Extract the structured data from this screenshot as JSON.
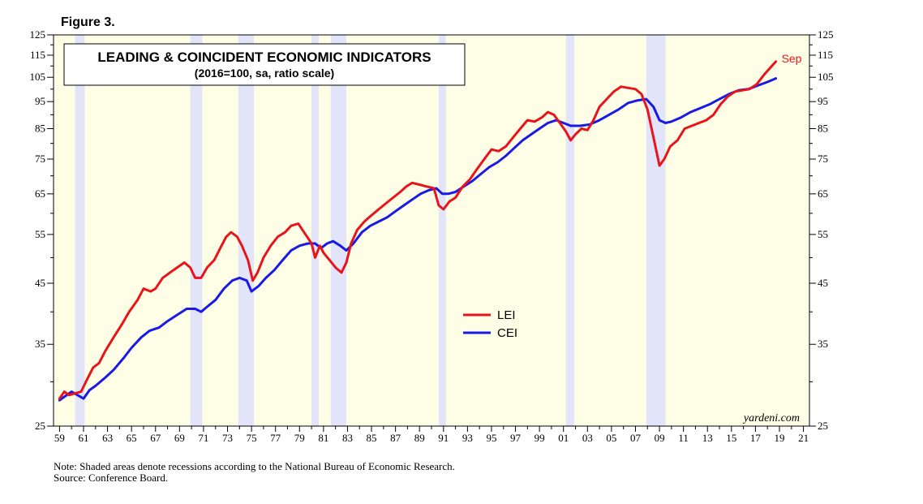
{
  "figure_label": "Figure 3.",
  "chart_data": {
    "type": "line",
    "title": "LEADING & COINCIDENT ECONOMIC INDICATORS",
    "subtitle": "(2016=100, sa, ratio scale)",
    "y_scale": "log",
    "ylim": [
      25,
      125
    ],
    "xlim": [
      1958.5,
      2021.5
    ],
    "y_ticks": [
      25,
      35,
      45,
      55,
      65,
      75,
      85,
      95,
      105,
      115,
      125
    ],
    "x_ticks": [
      1959,
      1961,
      1963,
      1965,
      1967,
      1969,
      1971,
      1973,
      1975,
      1977,
      1979,
      1981,
      1983,
      1985,
      1987,
      1989,
      1991,
      1993,
      1995,
      1997,
      1999,
      2001,
      2003,
      2005,
      2007,
      2009,
      2011,
      2013,
      2015,
      2017,
      2019,
      2021
    ],
    "x_tick_labels": [
      "59",
      "61",
      "63",
      "65",
      "67",
      "69",
      "71",
      "73",
      "75",
      "77",
      "79",
      "81",
      "83",
      "85",
      "87",
      "89",
      "91",
      "93",
      "95",
      "97",
      "99",
      "01",
      "03",
      "05",
      "07",
      "09",
      "11",
      "13",
      "15",
      "17",
      "19",
      "21"
    ],
    "recessions": [
      [
        1960.3,
        1961.1
      ],
      [
        1969.9,
        1970.9
      ],
      [
        1973.9,
        1975.2
      ],
      [
        1980.0,
        1980.6
      ],
      [
        1981.6,
        1982.9
      ],
      [
        1990.6,
        1991.2
      ],
      [
        2001.2,
        2001.9
      ],
      [
        2007.9,
        2009.5
      ]
    ],
    "series": [
      {
        "name": "LEI",
        "color": "#e8141c",
        "end_label": "Sep",
        "points": [
          [
            1959.0,
            28.0
          ],
          [
            1959.4,
            28.8
          ],
          [
            1959.8,
            28.4
          ],
          [
            1960.3,
            28.6
          ],
          [
            1960.8,
            28.8
          ],
          [
            1961.2,
            30.0
          ],
          [
            1961.8,
            31.8
          ],
          [
            1962.3,
            32.4
          ],
          [
            1962.8,
            34.0
          ],
          [
            1963.5,
            36.0
          ],
          [
            1964.2,
            38.0
          ],
          [
            1964.8,
            40.0
          ],
          [
            1965.5,
            42.0
          ],
          [
            1966.0,
            44.0
          ],
          [
            1966.6,
            43.5
          ],
          [
            1967.0,
            44.0
          ],
          [
            1967.6,
            46.0
          ],
          [
            1968.2,
            47.0
          ],
          [
            1968.8,
            48.0
          ],
          [
            1969.4,
            49.0
          ],
          [
            1969.9,
            48.0
          ],
          [
            1970.3,
            46.0
          ],
          [
            1970.8,
            46.0
          ],
          [
            1971.3,
            48.0
          ],
          [
            1971.9,
            49.5
          ],
          [
            1972.4,
            52.0
          ],
          [
            1972.9,
            54.5
          ],
          [
            1973.3,
            55.5
          ],
          [
            1973.8,
            54.5
          ],
          [
            1974.2,
            52.5
          ],
          [
            1974.7,
            49.5
          ],
          [
            1975.1,
            45.5
          ],
          [
            1975.5,
            47.0
          ],
          [
            1976.0,
            50.0
          ],
          [
            1976.6,
            52.5
          ],
          [
            1977.2,
            54.5
          ],
          [
            1977.8,
            55.5
          ],
          [
            1978.3,
            57.0
          ],
          [
            1978.9,
            57.5
          ],
          [
            1979.5,
            55.0
          ],
          [
            1980.0,
            53.0
          ],
          [
            1980.3,
            50.0
          ],
          [
            1980.7,
            52.5
          ],
          [
            1981.0,
            51.0
          ],
          [
            1981.5,
            49.5
          ],
          [
            1982.0,
            48.0
          ],
          [
            1982.5,
            47.0
          ],
          [
            1982.9,
            49.0
          ],
          [
            1983.3,
            53.0
          ],
          [
            1983.8,
            56.0
          ],
          [
            1984.4,
            58.0
          ],
          [
            1985.0,
            59.5
          ],
          [
            1985.6,
            61.0
          ],
          [
            1986.2,
            62.5
          ],
          [
            1986.8,
            64.0
          ],
          [
            1987.4,
            65.5
          ],
          [
            1987.9,
            67.0
          ],
          [
            1988.4,
            68.0
          ],
          [
            1989.0,
            67.5
          ],
          [
            1989.6,
            67.0
          ],
          [
            1990.2,
            66.5
          ],
          [
            1990.6,
            62.0
          ],
          [
            1991.0,
            61.0
          ],
          [
            1991.5,
            63.0
          ],
          [
            1992.0,
            64.0
          ],
          [
            1992.6,
            67.0
          ],
          [
            1993.2,
            69.0
          ],
          [
            1993.8,
            72.0
          ],
          [
            1994.4,
            75.0
          ],
          [
            1995.0,
            78.0
          ],
          [
            1995.6,
            77.5
          ],
          [
            1996.2,
            79.0
          ],
          [
            1996.8,
            82.0
          ],
          [
            1997.4,
            85.0
          ],
          [
            1998.0,
            88.0
          ],
          [
            1998.6,
            87.5
          ],
          [
            1999.2,
            89.0
          ],
          [
            1999.7,
            91.0
          ],
          [
            2000.2,
            90.0
          ],
          [
            2000.7,
            87.0
          ],
          [
            2001.2,
            84.0
          ],
          [
            2001.6,
            81.0
          ],
          [
            2002.0,
            83.0
          ],
          [
            2002.5,
            85.0
          ],
          [
            2003.0,
            84.5
          ],
          [
            2003.5,
            88.0
          ],
          [
            2004.0,
            93.0
          ],
          [
            2004.6,
            96.0
          ],
          [
            2005.2,
            99.0
          ],
          [
            2005.8,
            101.0
          ],
          [
            2006.4,
            100.5
          ],
          [
            2007.0,
            100.0
          ],
          [
            2007.5,
            98.0
          ],
          [
            2008.0,
            92.0
          ],
          [
            2008.5,
            82.0
          ],
          [
            2009.0,
            73.0
          ],
          [
            2009.4,
            75.0
          ],
          [
            2009.9,
            79.0
          ],
          [
            2010.5,
            81.0
          ],
          [
            2011.1,
            85.0
          ],
          [
            2011.7,
            86.0
          ],
          [
            2012.3,
            87.0
          ],
          [
            2012.9,
            88.0
          ],
          [
            2013.5,
            90.0
          ],
          [
            2014.1,
            94.0
          ],
          [
            2014.7,
            97.0
          ],
          [
            2015.3,
            99.0
          ],
          [
            2015.9,
            99.5
          ],
          [
            2016.5,
            100.0
          ],
          [
            2017.1,
            102.0
          ],
          [
            2017.7,
            106.0
          ],
          [
            2018.2,
            109.0
          ],
          [
            2018.7,
            112.0
          ]
        ]
      },
      {
        "name": "CEI",
        "color": "#1a1ae6",
        "points": [
          [
            1959.0,
            27.8
          ],
          [
            1959.5,
            28.3
          ],
          [
            1960.0,
            28.8
          ],
          [
            1960.5,
            28.4
          ],
          [
            1961.0,
            28.0
          ],
          [
            1961.5,
            29.0
          ],
          [
            1962.0,
            29.5
          ],
          [
            1962.8,
            30.5
          ],
          [
            1963.5,
            31.5
          ],
          [
            1964.3,
            33.0
          ],
          [
            1965.0,
            34.5
          ],
          [
            1965.8,
            36.0
          ],
          [
            1966.5,
            37.0
          ],
          [
            1967.3,
            37.5
          ],
          [
            1968.0,
            38.5
          ],
          [
            1968.8,
            39.5
          ],
          [
            1969.6,
            40.5
          ],
          [
            1970.3,
            40.5
          ],
          [
            1970.8,
            40.0
          ],
          [
            1971.4,
            41.0
          ],
          [
            1972.0,
            42.0
          ],
          [
            1972.7,
            44.0
          ],
          [
            1973.4,
            45.5
          ],
          [
            1974.0,
            46.0
          ],
          [
            1974.6,
            45.5
          ],
          [
            1975.0,
            43.5
          ],
          [
            1975.6,
            44.5
          ],
          [
            1976.2,
            46.0
          ],
          [
            1976.9,
            47.5
          ],
          [
            1977.6,
            49.5
          ],
          [
            1978.3,
            51.5
          ],
          [
            1979.0,
            52.5
          ],
          [
            1979.7,
            53.0
          ],
          [
            1980.3,
            53.0
          ],
          [
            1980.8,
            52.0
          ],
          [
            1981.3,
            53.0
          ],
          [
            1981.8,
            53.5
          ],
          [
            1982.4,
            52.5
          ],
          [
            1982.9,
            51.5
          ],
          [
            1983.5,
            53.0
          ],
          [
            1984.2,
            55.5
          ],
          [
            1984.9,
            57.0
          ],
          [
            1985.6,
            58.0
          ],
          [
            1986.3,
            59.0
          ],
          [
            1987.0,
            60.5
          ],
          [
            1987.7,
            62.0
          ],
          [
            1988.4,
            63.5
          ],
          [
            1989.1,
            65.0
          ],
          [
            1989.8,
            66.0
          ],
          [
            1990.4,
            66.5
          ],
          [
            1990.9,
            65.0
          ],
          [
            1991.4,
            65.0
          ],
          [
            1992.0,
            65.5
          ],
          [
            1992.7,
            67.0
          ],
          [
            1993.4,
            68.5
          ],
          [
            1994.1,
            70.5
          ],
          [
            1994.8,
            72.5
          ],
          [
            1995.5,
            74.0
          ],
          [
            1996.2,
            76.0
          ],
          [
            1996.9,
            78.5
          ],
          [
            1997.6,
            81.0
          ],
          [
            1998.3,
            83.0
          ],
          [
            1999.0,
            85.0
          ],
          [
            1999.7,
            87.0
          ],
          [
            2000.4,
            88.0
          ],
          [
            2001.0,
            87.0
          ],
          [
            2001.6,
            86.0
          ],
          [
            2002.4,
            86.0
          ],
          [
            2003.2,
            86.5
          ],
          [
            2004.0,
            88.0
          ],
          [
            2004.8,
            90.0
          ],
          [
            2005.6,
            92.0
          ],
          [
            2006.4,
            94.5
          ],
          [
            2007.2,
            95.5
          ],
          [
            2007.9,
            96.0
          ],
          [
            2008.5,
            93.0
          ],
          [
            2009.0,
            88.0
          ],
          [
            2009.5,
            87.0
          ],
          [
            2010.0,
            87.5
          ],
          [
            2010.8,
            89.0
          ],
          [
            2011.6,
            91.0
          ],
          [
            2012.4,
            92.5
          ],
          [
            2013.2,
            94.0
          ],
          [
            2014.0,
            96.0
          ],
          [
            2014.8,
            98.0
          ],
          [
            2015.6,
            99.5
          ],
          [
            2016.4,
            100.0
          ],
          [
            2017.2,
            101.5
          ],
          [
            2018.0,
            103.0
          ],
          [
            2018.7,
            104.5
          ]
        ]
      }
    ],
    "legend_position": "center"
  },
  "watermark": "yardeni.com",
  "note": "Note: Shaded areas denote recessions according to the National Bureau of Economic Research.",
  "source": "Source: Conference Board."
}
